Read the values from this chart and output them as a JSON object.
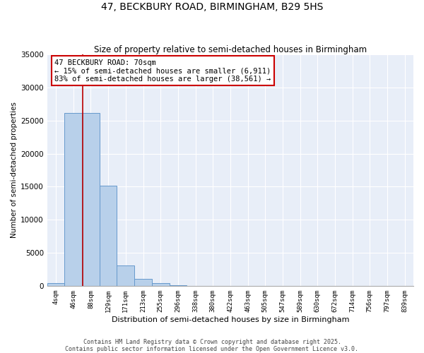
{
  "title": "47, BECKBURY ROAD, BIRMINGHAM, B29 5HS",
  "subtitle": "Size of property relative to semi-detached houses in Birmingham",
  "xlabel": "Distribution of semi-detached houses by size in Birmingham",
  "ylabel": "Number of semi-detached properties",
  "bin_labels": [
    "4sqm",
    "46sqm",
    "88sqm",
    "129sqm",
    "171sqm",
    "213sqm",
    "255sqm",
    "296sqm",
    "338sqm",
    "380sqm",
    "422sqm",
    "463sqm",
    "505sqm",
    "547sqm",
    "589sqm",
    "630sqm",
    "672sqm",
    "714sqm",
    "756sqm",
    "797sqm",
    "839sqm"
  ],
  "bin_values": [
    400,
    26100,
    26100,
    15100,
    3100,
    1100,
    450,
    100,
    0,
    0,
    0,
    0,
    0,
    0,
    0,
    0,
    0,
    0,
    0,
    0,
    0
  ],
  "bar_color": "#b8d0ea",
  "bar_edge_color": "#6699cc",
  "property_line_x": 1.55,
  "property_line_color": "#bb0000",
  "ylim": [
    0,
    35000
  ],
  "yticks": [
    0,
    5000,
    10000,
    15000,
    20000,
    25000,
    30000,
    35000
  ],
  "annotation_text": "47 BECKBURY ROAD: 70sqm\n← 15% of semi-detached houses are smaller (6,911)\n83% of semi-detached houses are larger (38,561) →",
  "annotation_box_edge": "#cc0000",
  "footer_line1": "Contains HM Land Registry data © Crown copyright and database right 2025.",
  "footer_line2": "Contains public sector information licensed under the Open Government Licence v3.0.",
  "background_color": "#ffffff",
  "plot_bg_color": "#e8eef8"
}
